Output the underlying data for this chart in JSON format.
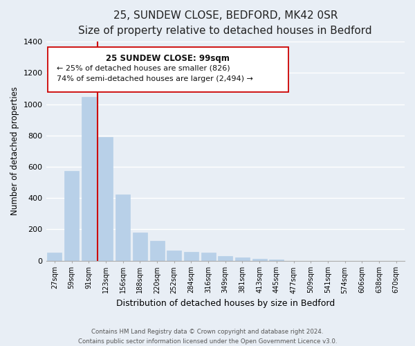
{
  "title": "25, SUNDEW CLOSE, BEDFORD, MK42 0SR",
  "subtitle": "Size of property relative to detached houses in Bedford",
  "xlabel": "Distribution of detached houses by size in Bedford",
  "ylabel": "Number of detached properties",
  "bar_labels": [
    "27sqm",
    "59sqm",
    "91sqm",
    "123sqm",
    "156sqm",
    "188sqm",
    "220sqm",
    "252sqm",
    "284sqm",
    "316sqm",
    "349sqm",
    "381sqm",
    "413sqm",
    "445sqm",
    "477sqm",
    "509sqm",
    "541sqm",
    "574sqm",
    "606sqm",
    "638sqm",
    "670sqm"
  ],
  "bar_values": [
    50,
    575,
    1045,
    790,
    425,
    178,
    125,
    65,
    55,
    50,
    28,
    20,
    10,
    5,
    0,
    0,
    0,
    0,
    0,
    0,
    0
  ],
  "bar_color": "#b8d0e8",
  "bar_edge_color": "#b8d0e8",
  "ylim": [
    0,
    1400
  ],
  "yticks": [
    0,
    200,
    400,
    600,
    800,
    1000,
    1200,
    1400
  ],
  "vline_x": 2.5,
  "vline_color": "#cc0000",
  "annotation_title": "25 SUNDEW CLOSE: 99sqm",
  "annotation_line1": "← 25% of detached houses are smaller (826)",
  "annotation_line2": "74% of semi-detached houses are larger (2,494) →",
  "footer1": "Contains HM Land Registry data © Crown copyright and database right 2024.",
  "footer2": "Contains public sector information licensed under the Open Government Licence v3.0.",
  "background_color": "#e8eef5",
  "grid_color": "#ffffff",
  "title_fontsize": 11,
  "subtitle_fontsize": 9.5
}
